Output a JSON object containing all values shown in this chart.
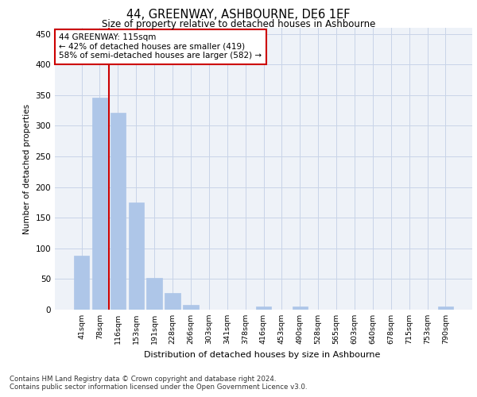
{
  "title": "44, GREENWAY, ASHBOURNE, DE6 1EF",
  "subtitle": "Size of property relative to detached houses in Ashbourne",
  "xlabel": "Distribution of detached houses by size in Ashbourne",
  "ylabel": "Number of detached properties",
  "categories": [
    "41sqm",
    "78sqm",
    "116sqm",
    "153sqm",
    "191sqm",
    "228sqm",
    "266sqm",
    "303sqm",
    "341sqm",
    "378sqm",
    "416sqm",
    "453sqm",
    "490sqm",
    "528sqm",
    "565sqm",
    "603sqm",
    "640sqm",
    "678sqm",
    "715sqm",
    "753sqm",
    "790sqm"
  ],
  "values": [
    88,
    346,
    321,
    175,
    52,
    27,
    8,
    0,
    0,
    0,
    5,
    0,
    5,
    0,
    0,
    0,
    0,
    0,
    0,
    0,
    5
  ],
  "bar_color": "#aec6e8",
  "bar_edge_color": "#aec6e8",
  "property_line_x": 1.5,
  "annotation_text": "44 GREENWAY: 115sqm\n← 42% of detached houses are smaller (419)\n58% of semi-detached houses are larger (582) →",
  "annotation_box_color": "#cc0000",
  "ylim": [
    0,
    460
  ],
  "yticks": [
    0,
    50,
    100,
    150,
    200,
    250,
    300,
    350,
    400,
    450
  ],
  "grid_color": "#c8d4e8",
  "background_color": "#eef2f8",
  "footer_line1": "Contains HM Land Registry data © Crown copyright and database right 2024.",
  "footer_line2": "Contains public sector information licensed under the Open Government Licence v3.0."
}
